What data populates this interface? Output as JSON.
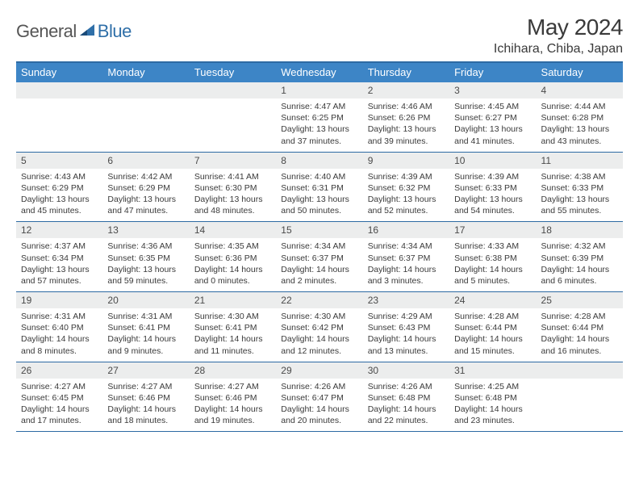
{
  "logo": {
    "text1": "General",
    "text2": "Blue"
  },
  "title": "May 2024",
  "location": "Ichihara, Chiba, Japan",
  "colors": {
    "header_bg": "#3d85c6",
    "header_text": "#ffffff",
    "border": "#2d6aa3",
    "band_bg": "#eceded",
    "text": "#3a3a3a"
  },
  "dow": [
    "Sunday",
    "Monday",
    "Tuesday",
    "Wednesday",
    "Thursday",
    "Friday",
    "Saturday"
  ],
  "weeks": [
    [
      {
        "n": "",
        "sr": "",
        "ss": "",
        "dl": ""
      },
      {
        "n": "",
        "sr": "",
        "ss": "",
        "dl": ""
      },
      {
        "n": "",
        "sr": "",
        "ss": "",
        "dl": ""
      },
      {
        "n": "1",
        "sr": "4:47 AM",
        "ss": "6:25 PM",
        "dl": "13 hours and 37 minutes."
      },
      {
        "n": "2",
        "sr": "4:46 AM",
        "ss": "6:26 PM",
        "dl": "13 hours and 39 minutes."
      },
      {
        "n": "3",
        "sr": "4:45 AM",
        "ss": "6:27 PM",
        "dl": "13 hours and 41 minutes."
      },
      {
        "n": "4",
        "sr": "4:44 AM",
        "ss": "6:28 PM",
        "dl": "13 hours and 43 minutes."
      }
    ],
    [
      {
        "n": "5",
        "sr": "4:43 AM",
        "ss": "6:29 PM",
        "dl": "13 hours and 45 minutes."
      },
      {
        "n": "6",
        "sr": "4:42 AM",
        "ss": "6:29 PM",
        "dl": "13 hours and 47 minutes."
      },
      {
        "n": "7",
        "sr": "4:41 AM",
        "ss": "6:30 PM",
        "dl": "13 hours and 48 minutes."
      },
      {
        "n": "8",
        "sr": "4:40 AM",
        "ss": "6:31 PM",
        "dl": "13 hours and 50 minutes."
      },
      {
        "n": "9",
        "sr": "4:39 AM",
        "ss": "6:32 PM",
        "dl": "13 hours and 52 minutes."
      },
      {
        "n": "10",
        "sr": "4:39 AM",
        "ss": "6:33 PM",
        "dl": "13 hours and 54 minutes."
      },
      {
        "n": "11",
        "sr": "4:38 AM",
        "ss": "6:33 PM",
        "dl": "13 hours and 55 minutes."
      }
    ],
    [
      {
        "n": "12",
        "sr": "4:37 AM",
        "ss": "6:34 PM",
        "dl": "13 hours and 57 minutes."
      },
      {
        "n": "13",
        "sr": "4:36 AM",
        "ss": "6:35 PM",
        "dl": "13 hours and 59 minutes."
      },
      {
        "n": "14",
        "sr": "4:35 AM",
        "ss": "6:36 PM",
        "dl": "14 hours and 0 minutes."
      },
      {
        "n": "15",
        "sr": "4:34 AM",
        "ss": "6:37 PM",
        "dl": "14 hours and 2 minutes."
      },
      {
        "n": "16",
        "sr": "4:34 AM",
        "ss": "6:37 PM",
        "dl": "14 hours and 3 minutes."
      },
      {
        "n": "17",
        "sr": "4:33 AM",
        "ss": "6:38 PM",
        "dl": "14 hours and 5 minutes."
      },
      {
        "n": "18",
        "sr": "4:32 AM",
        "ss": "6:39 PM",
        "dl": "14 hours and 6 minutes."
      }
    ],
    [
      {
        "n": "19",
        "sr": "4:31 AM",
        "ss": "6:40 PM",
        "dl": "14 hours and 8 minutes."
      },
      {
        "n": "20",
        "sr": "4:31 AM",
        "ss": "6:41 PM",
        "dl": "14 hours and 9 minutes."
      },
      {
        "n": "21",
        "sr": "4:30 AM",
        "ss": "6:41 PM",
        "dl": "14 hours and 11 minutes."
      },
      {
        "n": "22",
        "sr": "4:30 AM",
        "ss": "6:42 PM",
        "dl": "14 hours and 12 minutes."
      },
      {
        "n": "23",
        "sr": "4:29 AM",
        "ss": "6:43 PM",
        "dl": "14 hours and 13 minutes."
      },
      {
        "n": "24",
        "sr": "4:28 AM",
        "ss": "6:44 PM",
        "dl": "14 hours and 15 minutes."
      },
      {
        "n": "25",
        "sr": "4:28 AM",
        "ss": "6:44 PM",
        "dl": "14 hours and 16 minutes."
      }
    ],
    [
      {
        "n": "26",
        "sr": "4:27 AM",
        "ss": "6:45 PM",
        "dl": "14 hours and 17 minutes."
      },
      {
        "n": "27",
        "sr": "4:27 AM",
        "ss": "6:46 PM",
        "dl": "14 hours and 18 minutes."
      },
      {
        "n": "28",
        "sr": "4:27 AM",
        "ss": "6:46 PM",
        "dl": "14 hours and 19 minutes."
      },
      {
        "n": "29",
        "sr": "4:26 AM",
        "ss": "6:47 PM",
        "dl": "14 hours and 20 minutes."
      },
      {
        "n": "30",
        "sr": "4:26 AM",
        "ss": "6:48 PM",
        "dl": "14 hours and 22 minutes."
      },
      {
        "n": "31",
        "sr": "4:25 AM",
        "ss": "6:48 PM",
        "dl": "14 hours and 23 minutes."
      },
      {
        "n": "",
        "sr": "",
        "ss": "",
        "dl": ""
      }
    ]
  ],
  "labels": {
    "sunrise": "Sunrise: ",
    "sunset": "Sunset: ",
    "daylight": "Daylight: "
  }
}
